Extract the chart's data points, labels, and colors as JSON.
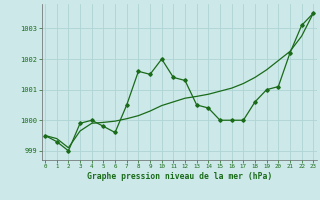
{
  "xlabel": "Graphe pression niveau de la mer (hPa)",
  "bg_color": "#cce8e8",
  "grid_color": "#afd4d4",
  "line_color": "#1a6b1a",
  "x_values": [
    0,
    1,
    2,
    3,
    4,
    5,
    6,
    7,
    8,
    9,
    10,
    11,
    12,
    13,
    14,
    15,
    16,
    17,
    18,
    19,
    20,
    21,
    22,
    23
  ],
  "y_main": [
    999.5,
    999.3,
    999.0,
    999.9,
    1000.0,
    999.8,
    999.6,
    1000.5,
    1001.6,
    1001.5,
    1002.0,
    1001.4,
    1001.3,
    1000.5,
    1000.4,
    1000.0,
    1000.0,
    1000.0,
    1000.6,
    1001.0,
    1001.1,
    1002.2,
    1003.1,
    1003.5
  ],
  "y_trend": [
    999.5,
    999.4,
    999.1,
    999.65,
    999.9,
    999.93,
    999.97,
    1000.05,
    1000.15,
    1000.3,
    1000.48,
    1000.6,
    1000.72,
    1000.78,
    1000.85,
    1000.95,
    1001.05,
    1001.2,
    1001.4,
    1001.65,
    1001.95,
    1002.25,
    1002.75,
    1003.5
  ],
  "ylim": [
    998.7,
    1003.8
  ],
  "yticks": [
    999,
    1000,
    1001,
    1002,
    1003
  ],
  "xlim": [
    -0.3,
    23.3
  ],
  "xticks": [
    0,
    1,
    2,
    3,
    4,
    5,
    6,
    7,
    8,
    9,
    10,
    11,
    12,
    13,
    14,
    15,
    16,
    17,
    18,
    19,
    20,
    21,
    22,
    23
  ]
}
